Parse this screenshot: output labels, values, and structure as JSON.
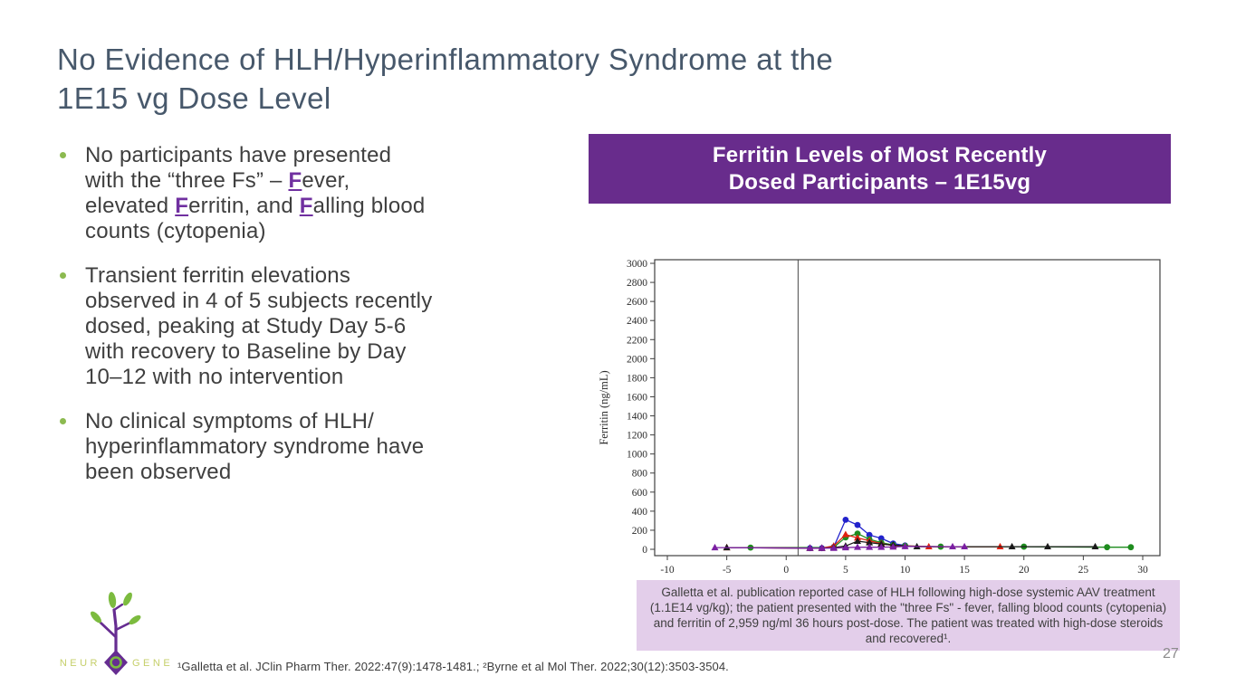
{
  "slide": {
    "title_line1": "No Evidence of HLH/Hyperinflammatory Syndrome at the",
    "title_line2": "1E15 vg Dose Level"
  },
  "bullets": [
    {
      "segments": [
        {
          "t": "No participants have presented"
        },
        {
          "br": true
        },
        {
          "t": "with the “three Fs” – "
        },
        {
          "t": "F",
          "f": true
        },
        {
          "t": "ever,"
        },
        {
          "br": true
        },
        {
          "t": "elevated "
        },
        {
          "t": "F",
          "f": true
        },
        {
          "t": "erritin, and "
        },
        {
          "t": "F",
          "f": true
        },
        {
          "t": "alling blood"
        },
        {
          "br": true
        },
        {
          "t": "counts (cytopenia)"
        }
      ]
    },
    {
      "segments": [
        {
          "t": "Transient ferritin elevations"
        },
        {
          "br": true
        },
        {
          "t": "observed in 4 of 5 subjects recently"
        },
        {
          "br": true
        },
        {
          "t": "dosed, peaking at Study Day 5-6"
        },
        {
          "br": true
        },
        {
          "t": "with recovery to Baseline by Day"
        },
        {
          "br": true
        },
        {
          "t": "10–12 with no intervention"
        }
      ]
    },
    {
      "segments": [
        {
          "t": "No clinical symptoms of HLH/"
        },
        {
          "br": true
        },
        {
          "t": "hyperinflammatory syndrome have"
        },
        {
          "br": true
        },
        {
          "t": "been observed"
        }
      ]
    }
  ],
  "chart_banner": {
    "line1": "Ferritin Levels of Most Recently",
    "line2": "Dosed Participants – 1E15vg"
  },
  "caption": {
    "text": "Galletta et al. publication reported case of HLH following high-dose systemic AAV treatment (1.1E14 vg/kg); the patient presented with the \"three Fs\" - fever, falling blood counts (cytopenia) and ferritin of 2,959 ng/ml 36 hours post-dose. The patient was treated with high-dose steroids and recovered¹."
  },
  "footer": {
    "footnote": "¹Galletta et al. JClin Pharm Ther. 2022:47(9):1478-1481.; ²Byrne et al Mol Ther. 2022;30(12):3503-3504.",
    "page_number": "27"
  },
  "logo": {
    "word_left": "NEUR",
    "word_right": "GENE"
  },
  "colors": {
    "title": "#47586B",
    "body_text": "#3F3F3F",
    "bullet_marker": "#8CBA50",
    "accent_purple": "#7030A0",
    "banner_bg": "#682C8C",
    "caption_bg": "#E3CEEA",
    "logo_purple": "#662D91",
    "logo_leaf": "#7CBB3F",
    "logo_text": "#C5CF6A"
  },
  "chart_data": {
    "type": "line",
    "title": "Ferritin Levels of Most Recently Dosed Participants – 1E15vg",
    "xlabel": "",
    "ylabel": "Ferritin (ng/mL)",
    "xlim": [
      -12,
      31
    ],
    "ylim": [
      0,
      3000
    ],
    "x_ticks": [
      -10,
      -5,
      0,
      5,
      10,
      15,
      20,
      25,
      30
    ],
    "y_tick_step": 200,
    "reference_line_x": 1,
    "grid": false,
    "legend": "none",
    "series": [
      {
        "name": "participant-blue",
        "color": "#2222CC",
        "marker": "circle",
        "points": [
          [
            2,
            12
          ],
          [
            3,
            12
          ],
          [
            4,
            25
          ],
          [
            5,
            310
          ],
          [
            6,
            255
          ],
          [
            7,
            150
          ],
          [
            8,
            115
          ],
          [
            9,
            60
          ],
          [
            10,
            40
          ]
        ]
      },
      {
        "name": "participant-green",
        "color": "#1E8C1E",
        "marker": "circle",
        "points": [
          [
            -3,
            18
          ],
          [
            4,
            20
          ],
          [
            5,
            125
          ],
          [
            6,
            165
          ],
          [
            7,
            105
          ],
          [
            8,
            70
          ],
          [
            9,
            45
          ],
          [
            10,
            35
          ],
          [
            13,
            28
          ],
          [
            20,
            28
          ],
          [
            27,
            22
          ],
          [
            29,
            22
          ]
        ]
      },
      {
        "name": "participant-red",
        "color": "#E02010",
        "marker": "triangle",
        "points": [
          [
            -5,
            18
          ],
          [
            2,
            12
          ],
          [
            3,
            12
          ],
          [
            4,
            35
          ],
          [
            5,
            155
          ],
          [
            6,
            120
          ],
          [
            7,
            90
          ],
          [
            8,
            60
          ],
          [
            9,
            40
          ],
          [
            12,
            28
          ],
          [
            18,
            28
          ]
        ]
      },
      {
        "name": "participant-black",
        "color": "#1A1A1A",
        "marker": "triangle",
        "points": [
          [
            -5,
            18
          ],
          [
            2,
            12
          ],
          [
            3,
            12
          ],
          [
            4,
            18
          ],
          [
            5,
            35
          ],
          [
            6,
            85
          ],
          [
            7,
            70
          ],
          [
            8,
            55
          ],
          [
            9,
            45
          ],
          [
            11,
            28
          ],
          [
            19,
            28
          ],
          [
            22,
            28
          ],
          [
            26,
            28
          ]
        ]
      },
      {
        "name": "participant-purple",
        "color": "#7B1FA2",
        "marker": "triangle",
        "points": [
          [
            -6,
            18
          ],
          [
            2,
            12
          ],
          [
            3,
            12
          ],
          [
            4,
            12
          ],
          [
            5,
            18
          ],
          [
            6,
            22
          ],
          [
            7,
            22
          ],
          [
            8,
            22
          ],
          [
            9,
            25
          ],
          [
            10,
            30
          ],
          [
            14,
            28
          ],
          [
            15,
            28
          ]
        ]
      }
    ]
  }
}
